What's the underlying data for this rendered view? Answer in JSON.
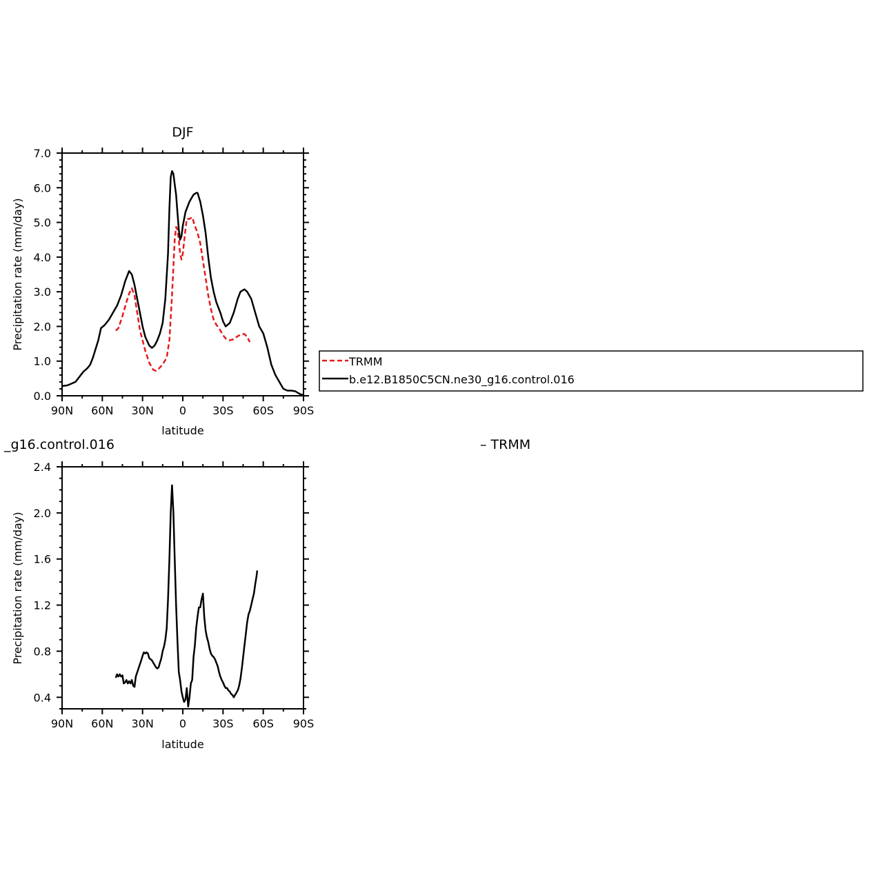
{
  "chart_data": [
    {
      "type": "line",
      "title": "DJF",
      "xlabel": "latitude",
      "ylabel": "Precipitation rate (mm/day)",
      "xlim": [
        -90,
        90
      ],
      "ylim": [
        0,
        7
      ],
      "x_ticks": [
        -90,
        -60,
        -30,
        0,
        30,
        60,
        90
      ],
      "x_tick_labels": [
        "90N",
        "60N",
        "30N",
        "0",
        "30S",
        "60S",
        "90S"
      ],
      "y_ticks": [
        0,
        1,
        2,
        3,
        4,
        5,
        6,
        7
      ],
      "y_tick_labels": [
        "0.0",
        "1.0",
        "2.0",
        "3.0",
        "4.0",
        "5.0",
        "6.0",
        "7.0"
      ],
      "grid": false,
      "legend_position": "right",
      "series": [
        {
          "name": "TRMM",
          "color": "#e41a1c",
          "dash": true,
          "points": [
            [
              -50,
              1.88
            ],
            [
              -48,
              1.95
            ],
            [
              -45,
              2.3
            ],
            [
              -42,
              2.7
            ],
            [
              -40,
              2.95
            ],
            [
              -38,
              3.1
            ],
            [
              -36,
              2.9
            ],
            [
              -34,
              2.4
            ],
            [
              -32,
              1.9
            ],
            [
              -30,
              1.6
            ],
            [
              -28,
              1.3
            ],
            [
              -25,
              0.95
            ],
            [
              -22,
              0.75
            ],
            [
              -20,
              0.72
            ],
            [
              -18,
              0.78
            ],
            [
              -15,
              0.9
            ],
            [
              -12,
              1.1
            ],
            [
              -10,
              1.6
            ],
            [
              -8,
              2.9
            ],
            [
              -6,
              4.5
            ],
            [
              -5,
              4.87
            ],
            [
              -4,
              4.8
            ],
            [
              -3,
              4.5
            ],
            [
              -2,
              4.1
            ],
            [
              -1,
              3.93
            ],
            [
              0,
              4.1
            ],
            [
              2,
              4.8
            ],
            [
              3,
              5.1
            ],
            [
              5,
              5.1
            ],
            [
              7,
              5.15
            ],
            [
              9,
              4.9
            ],
            [
              11,
              4.7
            ],
            [
              13,
              4.4
            ],
            [
              15,
              3.9
            ],
            [
              17,
              3.4
            ],
            [
              19,
              2.9
            ],
            [
              21,
              2.5
            ],
            [
              23,
              2.2
            ],
            [
              25,
              2.05
            ],
            [
              27,
              1.95
            ],
            [
              30,
              1.75
            ],
            [
              32,
              1.65
            ],
            [
              35,
              1.6
            ],
            [
              38,
              1.63
            ],
            [
              41,
              1.72
            ],
            [
              44,
              1.78
            ],
            [
              46,
              1.78
            ],
            [
              48,
              1.7
            ],
            [
              50,
              1.55
            ]
          ]
        },
        {
          "name": "b.e12.B1850C5CN.ne30_g16.control.016",
          "color": "#000000",
          "dash": false,
          "points": [
            [
              -90,
              0.28
            ],
            [
              -86,
              0.3
            ],
            [
              -80,
              0.4
            ],
            [
              -77,
              0.55
            ],
            [
              -74,
              0.7
            ],
            [
              -71,
              0.8
            ],
            [
              -69,
              0.9
            ],
            [
              -67,
              1.1
            ],
            [
              -65,
              1.35
            ],
            [
              -63,
              1.6
            ],
            [
              -61,
              1.95
            ],
            [
              -58,
              2.05
            ],
            [
              -55,
              2.2
            ],
            [
              -52,
              2.4
            ],
            [
              -49,
              2.6
            ],
            [
              -46,
              2.9
            ],
            [
              -43,
              3.3
            ],
            [
              -40,
              3.6
            ],
            [
              -38,
              3.5
            ],
            [
              -36,
              3.2
            ],
            [
              -34,
              2.8
            ],
            [
              -32,
              2.4
            ],
            [
              -30,
              2.0
            ],
            [
              -28,
              1.7
            ],
            [
              -25,
              1.45
            ],
            [
              -23,
              1.38
            ],
            [
              -21,
              1.45
            ],
            [
              -19,
              1.6
            ],
            [
              -17,
              1.8
            ],
            [
              -15,
              2.1
            ],
            [
              -13,
              2.8
            ],
            [
              -11,
              4.1
            ],
            [
              -10,
              5.4
            ],
            [
              -9,
              6.3
            ],
            [
              -8,
              6.48
            ],
            [
              -7,
              6.4
            ],
            [
              -6,
              6.1
            ],
            [
              -5,
              5.8
            ],
            [
              -4,
              5.3
            ],
            [
              -3,
              4.8
            ],
            [
              -2,
              4.5
            ],
            [
              -1,
              4.6
            ],
            [
              0,
              4.9
            ],
            [
              2,
              5.3
            ],
            [
              5,
              5.6
            ],
            [
              8,
              5.8
            ],
            [
              10,
              5.85
            ],
            [
              11,
              5.85
            ],
            [
              13,
              5.6
            ],
            [
              15,
              5.2
            ],
            [
              17,
              4.7
            ],
            [
              19,
              4.0
            ],
            [
              21,
              3.4
            ],
            [
              23,
              3.0
            ],
            [
              25,
              2.7
            ],
            [
              28,
              2.4
            ],
            [
              30,
              2.15
            ],
            [
              32,
              2.0
            ],
            [
              35,
              2.1
            ],
            [
              38,
              2.4
            ],
            [
              41,
              2.8
            ],
            [
              43,
              3.0
            ],
            [
              46,
              3.07
            ],
            [
              48,
              3.0
            ],
            [
              51,
              2.8
            ],
            [
              54,
              2.4
            ],
            [
              57,
              2.0
            ],
            [
              60,
              1.8
            ],
            [
              63,
              1.4
            ],
            [
              66,
              0.9
            ],
            [
              69,
              0.6
            ],
            [
              72,
              0.4
            ],
            [
              75,
              0.2
            ],
            [
              78,
              0.15
            ],
            [
              81,
              0.15
            ],
            [
              84,
              0.13
            ],
            [
              86,
              0.08
            ],
            [
              88,
              0.04
            ],
            [
              90,
              0.02
            ]
          ]
        }
      ]
    },
    {
      "type": "line",
      "title": "_g16.control.016",
      "title_right": "– TRMM",
      "xlabel": "latitude",
      "ylabel": "Precipitation rate (mm/day)",
      "xlim": [
        -90,
        90
      ],
      "ylim": [
        0.3,
        2.4
      ],
      "x_ticks": [
        -90,
        -60,
        -30,
        0,
        30,
        60,
        90
      ],
      "x_tick_labels": [
        "90N",
        "60N",
        "30N",
        "0",
        "30S",
        "60S",
        "90S"
      ],
      "y_ticks": [
        0.4,
        0.8,
        1.2,
        1.6,
        2.0,
        2.4
      ],
      "y_tick_labels": [
        "0.4",
        "0.8",
        "1.2",
        "1.6",
        "2.0",
        "2.4"
      ],
      "grid": false,
      "series": [
        {
          "color": "#000000",
          "dash": false,
          "points": [
            [
              -50,
              0.57
            ],
            [
              -49,
              0.6
            ],
            [
              -48,
              0.58
            ],
            [
              -47,
              0.6
            ],
            [
              -46,
              0.58
            ],
            [
              -45,
              0.59
            ],
            [
              -44,
              0.52
            ],
            [
              -43,
              0.53
            ],
            [
              -42,
              0.55
            ],
            [
              -41,
              0.52
            ],
            [
              -40,
              0.54
            ],
            [
              -39,
              0.52
            ],
            [
              -38,
              0.55
            ],
            [
              -37,
              0.5
            ],
            [
              -36,
              0.49
            ],
            [
              -35,
              0.58
            ],
            [
              -33,
              0.65
            ],
            [
              -31,
              0.72
            ],
            [
              -30,
              0.76
            ],
            [
              -29,
              0.79
            ],
            [
              -28,
              0.78
            ],
            [
              -27,
              0.79
            ],
            [
              -26,
              0.78
            ],
            [
              -25,
              0.74
            ],
            [
              -24,
              0.73
            ],
            [
              -23,
              0.72
            ],
            [
              -22,
              0.7
            ],
            [
              -21,
              0.68
            ],
            [
              -20,
              0.66
            ],
            [
              -19,
              0.65
            ],
            [
              -18,
              0.66
            ],
            [
              -17,
              0.7
            ],
            [
              -16,
              0.74
            ],
            [
              -15,
              0.8
            ],
            [
              -14,
              0.84
            ],
            [
              -13,
              0.9
            ],
            [
              -12,
              1.0
            ],
            [
              -11,
              1.25
            ],
            [
              -10,
              1.6
            ],
            [
              -9,
              2.0
            ],
            [
              -8,
              2.24
            ],
            [
              -7,
              2.0
            ],
            [
              -6,
              1.6
            ],
            [
              -5,
              1.2
            ],
            [
              -4,
              0.9
            ],
            [
              -3,
              0.62
            ],
            [
              -2,
              0.55
            ],
            [
              -1,
              0.45
            ],
            [
              0,
              0.4
            ],
            [
              1,
              0.36
            ],
            [
              2,
              0.38
            ],
            [
              3,
              0.48
            ],
            [
              4,
              0.32
            ],
            [
              5,
              0.4
            ],
            [
              6,
              0.52
            ],
            [
              7,
              0.55
            ],
            [
              8,
              0.75
            ],
            [
              9,
              0.85
            ],
            [
              10,
              1.0
            ],
            [
              11,
              1.1
            ],
            [
              12,
              1.18
            ],
            [
              13,
              1.18
            ],
            [
              14,
              1.25
            ],
            [
              15,
              1.3
            ],
            [
              16,
              1.1
            ],
            [
              17,
              0.98
            ],
            [
              18,
              0.92
            ],
            [
              19,
              0.88
            ],
            [
              20,
              0.82
            ],
            [
              21,
              0.78
            ],
            [
              22,
              0.76
            ],
            [
              23,
              0.75
            ],
            [
              24,
              0.73
            ],
            [
              25,
              0.7
            ],
            [
              26,
              0.67
            ],
            [
              27,
              0.62
            ],
            [
              28,
              0.58
            ],
            [
              29,
              0.55
            ],
            [
              30,
              0.53
            ],
            [
              31,
              0.5
            ],
            [
              32,
              0.48
            ],
            [
              33,
              0.48
            ],
            [
              34,
              0.46
            ],
            [
              35,
              0.45
            ],
            [
              36,
              0.43
            ],
            [
              37,
              0.42
            ],
            [
              38,
              0.4
            ],
            [
              39,
              0.42
            ],
            [
              40,
              0.44
            ],
            [
              41,
              0.46
            ],
            [
              42,
              0.5
            ],
            [
              43,
              0.56
            ],
            [
              44,
              0.65
            ],
            [
              45,
              0.75
            ],
            [
              46,
              0.85
            ],
            [
              47,
              0.95
            ],
            [
              48,
              1.05
            ],
            [
              49,
              1.12
            ],
            [
              50,
              1.15
            ],
            [
              51,
              1.2
            ],
            [
              52,
              1.25
            ],
            [
              53,
              1.3
            ],
            [
              54,
              1.38
            ],
            [
              55,
              1.45
            ],
            [
              55.5,
              1.5
            ]
          ]
        }
      ]
    }
  ]
}
